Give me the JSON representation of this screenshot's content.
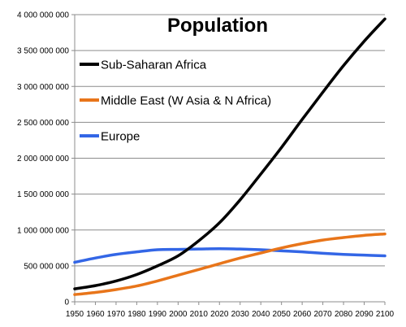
{
  "chart_data": {
    "type": "line",
    "title": "Population",
    "xlabel": "",
    "ylabel": "",
    "xlim": [
      1950,
      2100
    ],
    "ylim": [
      0,
      4000000000
    ],
    "grid": "horizontal",
    "legend_position": "top-left",
    "x_ticks": [
      "1950",
      "1960",
      "1970",
      "1980",
      "1990",
      "2000",
      "2010",
      "2020",
      "2030",
      "2040",
      "2050",
      "2060",
      "2070",
      "2080",
      "2090",
      "2100"
    ],
    "y_ticks": [
      "0",
      "500 000 000",
      "1 000 000 000",
      "1 500 000 000",
      "2 000 000 000",
      "2 500 000 000",
      "3 000 000 000",
      "3 500 000 000",
      "4 000 000 000"
    ],
    "x": [
      1950,
      1960,
      1970,
      1980,
      1990,
      2000,
      2010,
      2020,
      2030,
      2040,
      2050,
      2060,
      2070,
      2080,
      2090,
      2100
    ],
    "series": [
      {
        "name": "Sub-Saharan Africa",
        "color": "#000000",
        "values": [
          180000000,
          225000000,
          290000000,
          380000000,
          500000000,
          640000000,
          850000000,
          1100000000,
          1420000000,
          1780000000,
          2150000000,
          2540000000,
          2920000000,
          3290000000,
          3630000000,
          3940000000
        ]
      },
      {
        "name": "Middle East (W Asia & N Africa)",
        "color": "#e8751a",
        "values": [
          100000000,
          130000000,
          170000000,
          220000000,
          290000000,
          370000000,
          450000000,
          530000000,
          610000000,
          680000000,
          750000000,
          810000000,
          860000000,
          895000000,
          925000000,
          945000000
        ]
      },
      {
        "name": "Europe",
        "color": "#3366e6",
        "values": [
          550000000,
          610000000,
          660000000,
          695000000,
          725000000,
          730000000,
          735000000,
          740000000,
          735000000,
          725000000,
          710000000,
          695000000,
          675000000,
          660000000,
          650000000,
          640000000
        ]
      }
    ]
  }
}
